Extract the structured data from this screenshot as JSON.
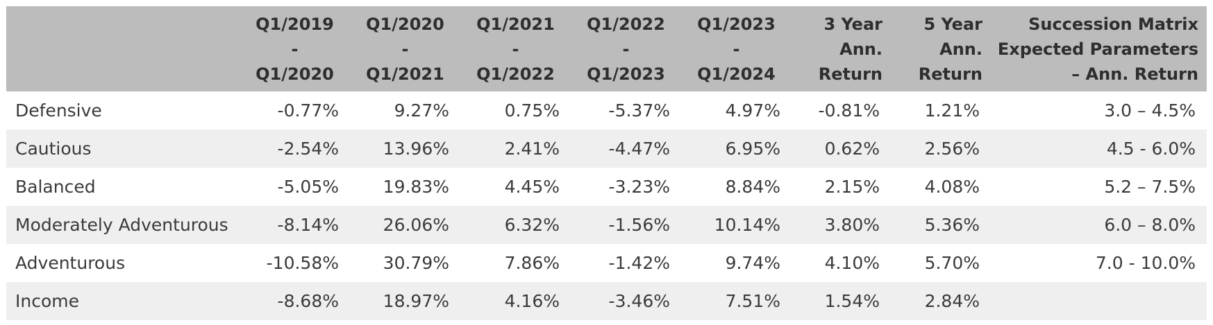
{
  "table": {
    "header": [
      [
        "Q1/2019",
        "-",
        "Q1/2020"
      ],
      [
        "Q1/2020",
        "-",
        "Q1/2021"
      ],
      [
        "Q1/2021",
        "-",
        "Q1/2022"
      ],
      [
        "Q1/2022",
        "-",
        "Q1/2023"
      ],
      [
        "Q1/2023",
        "-",
        "Q1/2024"
      ],
      [
        "3 Year",
        "Ann.",
        "Return"
      ],
      [
        "5 Year",
        "Ann.",
        "Return"
      ],
      [
        "Succession Matrix",
        "Expected Parameters",
        "– Ann. Return"
      ]
    ],
    "rows": [
      [
        "Defensive",
        "-0.77%",
        "9.27%",
        "0.75%",
        "-5.37%",
        "4.97%",
        "-0.81%",
        "1.21%",
        "3.0 – 4.5%"
      ],
      [
        "Cautious",
        "-2.54%",
        "13.96%",
        "2.41%",
        "-4.47%",
        "6.95%",
        "0.62%",
        "2.56%",
        "4.5 - 6.0%"
      ],
      [
        "Balanced",
        "-5.05%",
        "19.83%",
        "4.45%",
        "-3.23%",
        "8.84%",
        "2.15%",
        "4.08%",
        "5.2 – 7.5%"
      ],
      [
        "Moderately Adventurous",
        "-8.14%",
        "26.06%",
        "6.32%",
        "-1.56%",
        "10.14%",
        "3.80%",
        "5.36%",
        "6.0 – 8.0%"
      ],
      [
        "Adventurous",
        "-10.58%",
        "30.79%",
        "7.86%",
        "-1.42%",
        "9.74%",
        "4.10%",
        "5.70%",
        "7.0 - 10.0%"
      ],
      [
        "Income",
        "-8.68%",
        "18.97%",
        "4.16%",
        "-3.46%",
        "7.51%",
        "1.54%",
        "2.84%"
      ]
    ]
  }
}
